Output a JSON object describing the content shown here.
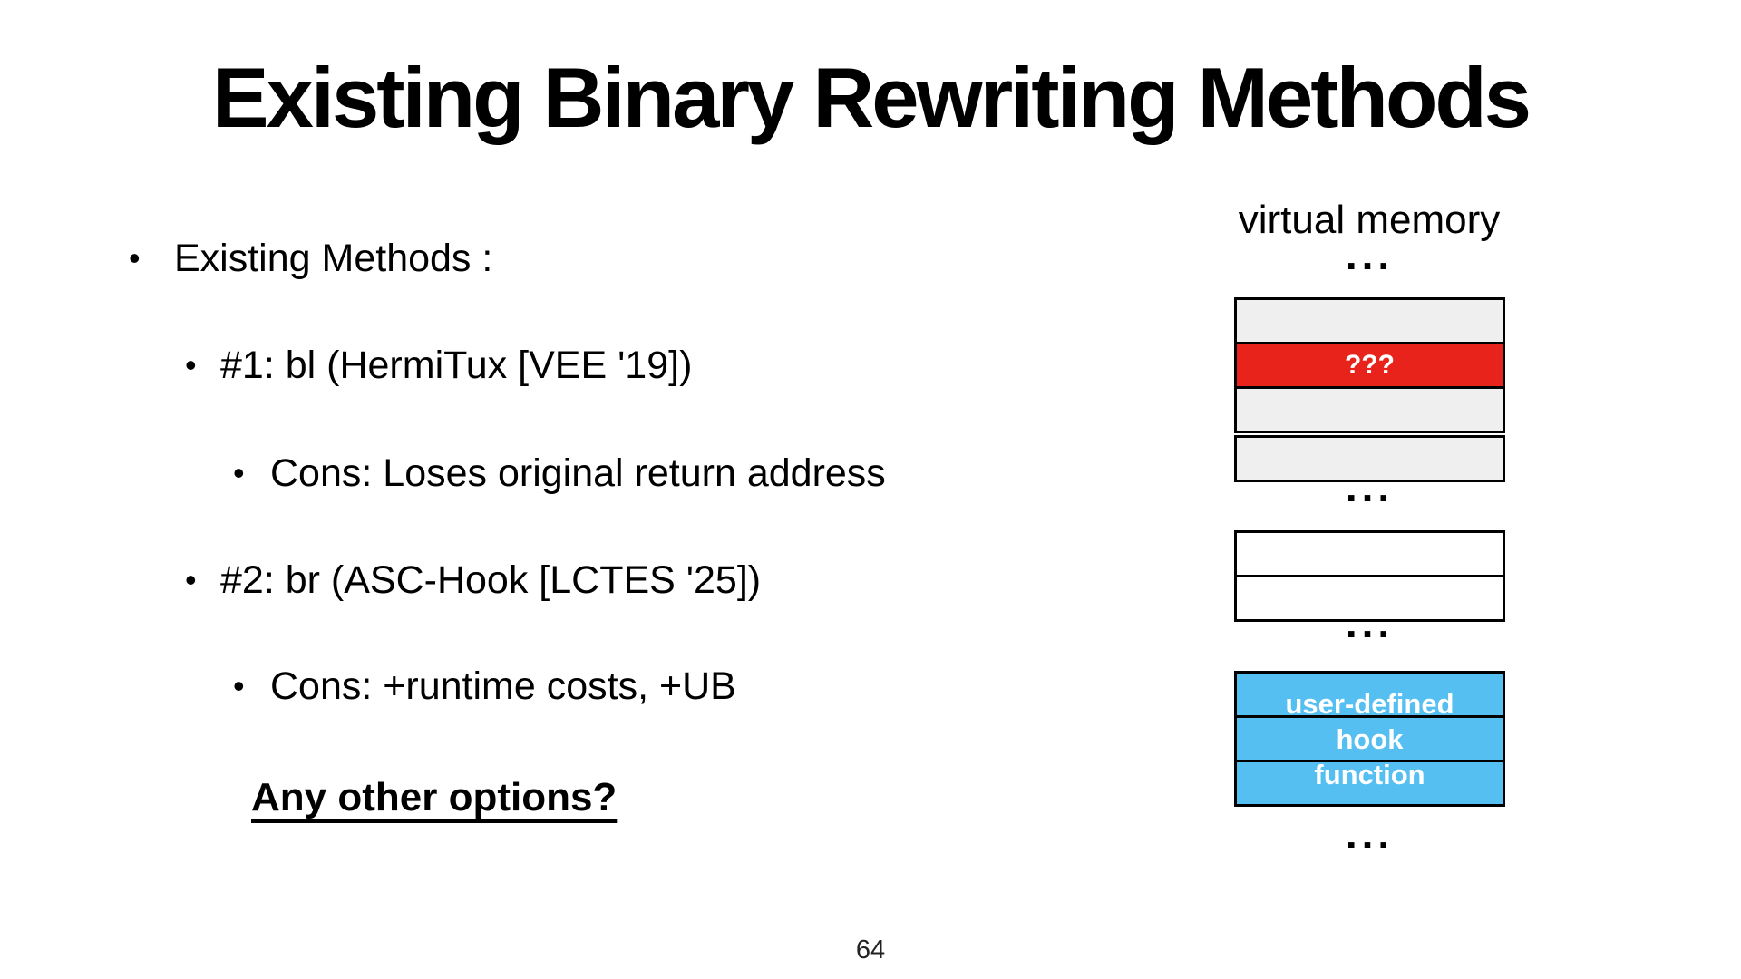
{
  "slide": {
    "title": "Existing Binary Rewriting Methods",
    "page_number": "64"
  },
  "bullets": {
    "marker": "•",
    "items": [
      {
        "level": 1,
        "text": "Existing Methods :"
      },
      {
        "level": 2,
        "text": "#1: bl (HermiTux [VEE '19])"
      },
      {
        "level": 3,
        "text": "Cons: Loses original return address"
      },
      {
        "level": 2,
        "text": "#2: br (ASC-Hook [LCTES '25])"
      },
      {
        "level": 3,
        "text": "Cons: +runtime costs, +UB"
      }
    ],
    "question": "Any other options?"
  },
  "diagram": {
    "title": "virtual memory",
    "ellipsis": "...",
    "unknown_cell_label": "???",
    "hook_label": {
      "line1": "user-defined",
      "line2": "hook",
      "line3": "function"
    },
    "colors": {
      "unknown_cell": "#e8231c",
      "hook_cell": "#55bff1",
      "mapped_cell": "#efefef",
      "empty_cell": "#ffffff",
      "border": "#000000"
    }
  }
}
